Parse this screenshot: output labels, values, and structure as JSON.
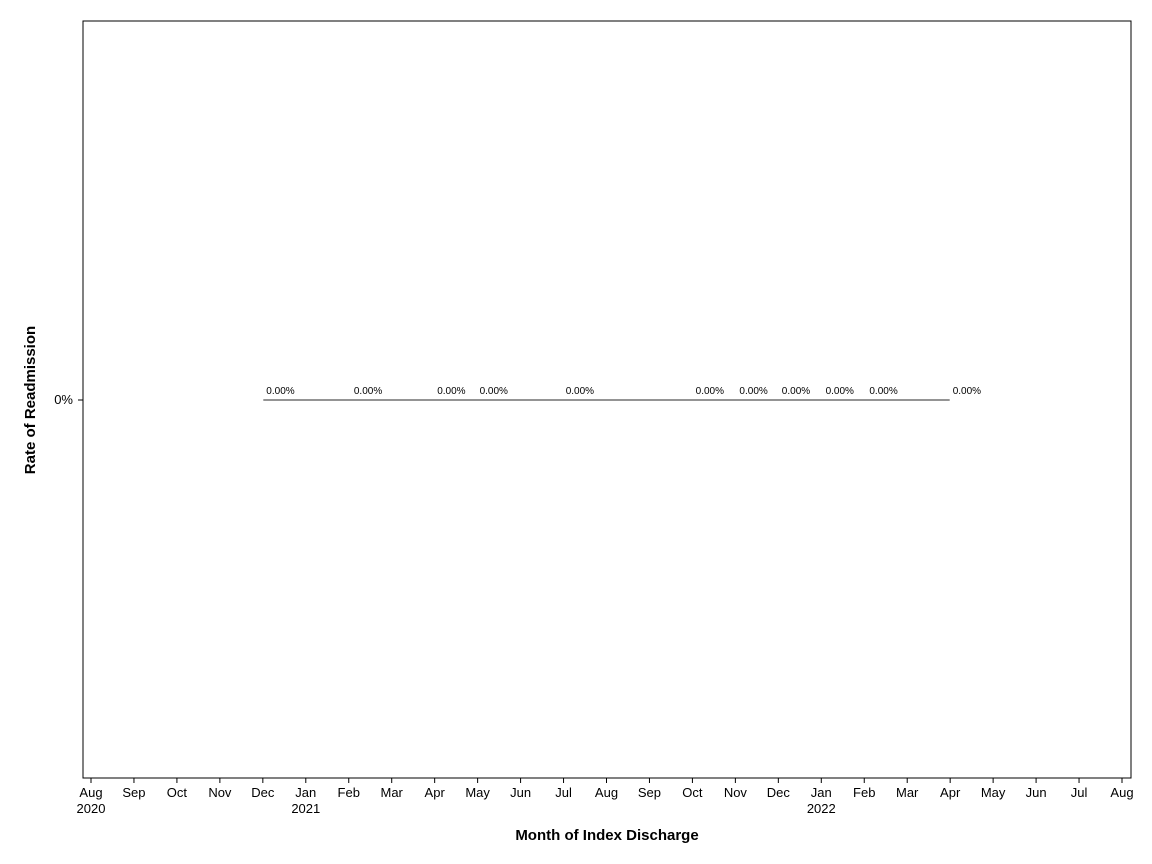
{
  "chart_data": {
    "type": "line",
    "title": "",
    "xlabel": "Month of Index Discharge",
    "ylabel": "Rate of Readmission",
    "x_ticks": [
      {
        "month": "Aug",
        "year": "2020"
      },
      {
        "month": "Sep",
        "year": ""
      },
      {
        "month": "Oct",
        "year": ""
      },
      {
        "month": "Nov",
        "year": ""
      },
      {
        "month": "Dec",
        "year": ""
      },
      {
        "month": "Jan",
        "year": "2021"
      },
      {
        "month": "Feb",
        "year": ""
      },
      {
        "month": "Mar",
        "year": ""
      },
      {
        "month": "Apr",
        "year": ""
      },
      {
        "month": "May",
        "year": ""
      },
      {
        "month": "Jun",
        "year": ""
      },
      {
        "month": "Jul",
        "year": ""
      },
      {
        "month": "Aug",
        "year": ""
      },
      {
        "month": "Sep",
        "year": ""
      },
      {
        "month": "Oct",
        "year": ""
      },
      {
        "month": "Nov",
        "year": ""
      },
      {
        "month": "Dec",
        "year": ""
      },
      {
        "month": "Jan",
        "year": "2022"
      },
      {
        "month": "Feb",
        "year": ""
      },
      {
        "month": "Mar",
        "year": ""
      },
      {
        "month": "Apr",
        "year": ""
      },
      {
        "month": "May",
        "year": ""
      },
      {
        "month": "Jun",
        "year": ""
      },
      {
        "month": "Jul",
        "year": ""
      },
      {
        "month": "Aug",
        "year": ""
      }
    ],
    "xlim": [
      "2020-08-01",
      "2022-08-01"
    ],
    "y_ticks": [
      {
        "value": 0,
        "label": "0%"
      }
    ],
    "line": {
      "x_start": "2020-12-01",
      "x_end": "2022-04-01",
      "y": 0
    },
    "points": [
      {
        "x": "2020-12-01",
        "y": 0,
        "label": "0.00%"
      },
      {
        "x": "2021-02-01",
        "y": 0,
        "label": "0.00%"
      },
      {
        "x": "2021-04-01",
        "y": 0,
        "label": "0.00%"
      },
      {
        "x": "2021-05-01",
        "y": 0,
        "label": "0.00%"
      },
      {
        "x": "2021-07-01",
        "y": 0,
        "label": "0.00%"
      },
      {
        "x": "2021-10-01",
        "y": 0,
        "label": "0.00%"
      },
      {
        "x": "2021-11-01",
        "y": 0,
        "label": "0.00%"
      },
      {
        "x": "2021-12-01",
        "y": 0,
        "label": "0.00%"
      },
      {
        "x": "2022-01-01",
        "y": 0,
        "label": "0.00%"
      },
      {
        "x": "2022-02-01",
        "y": 0,
        "label": "0.00%"
      },
      {
        "x": "2022-04-01",
        "y": 0,
        "label": "0.00%"
      }
    ],
    "grid": false,
    "legend": "none",
    "colors": {
      "line": "#555555",
      "axis": "#000000"
    }
  }
}
